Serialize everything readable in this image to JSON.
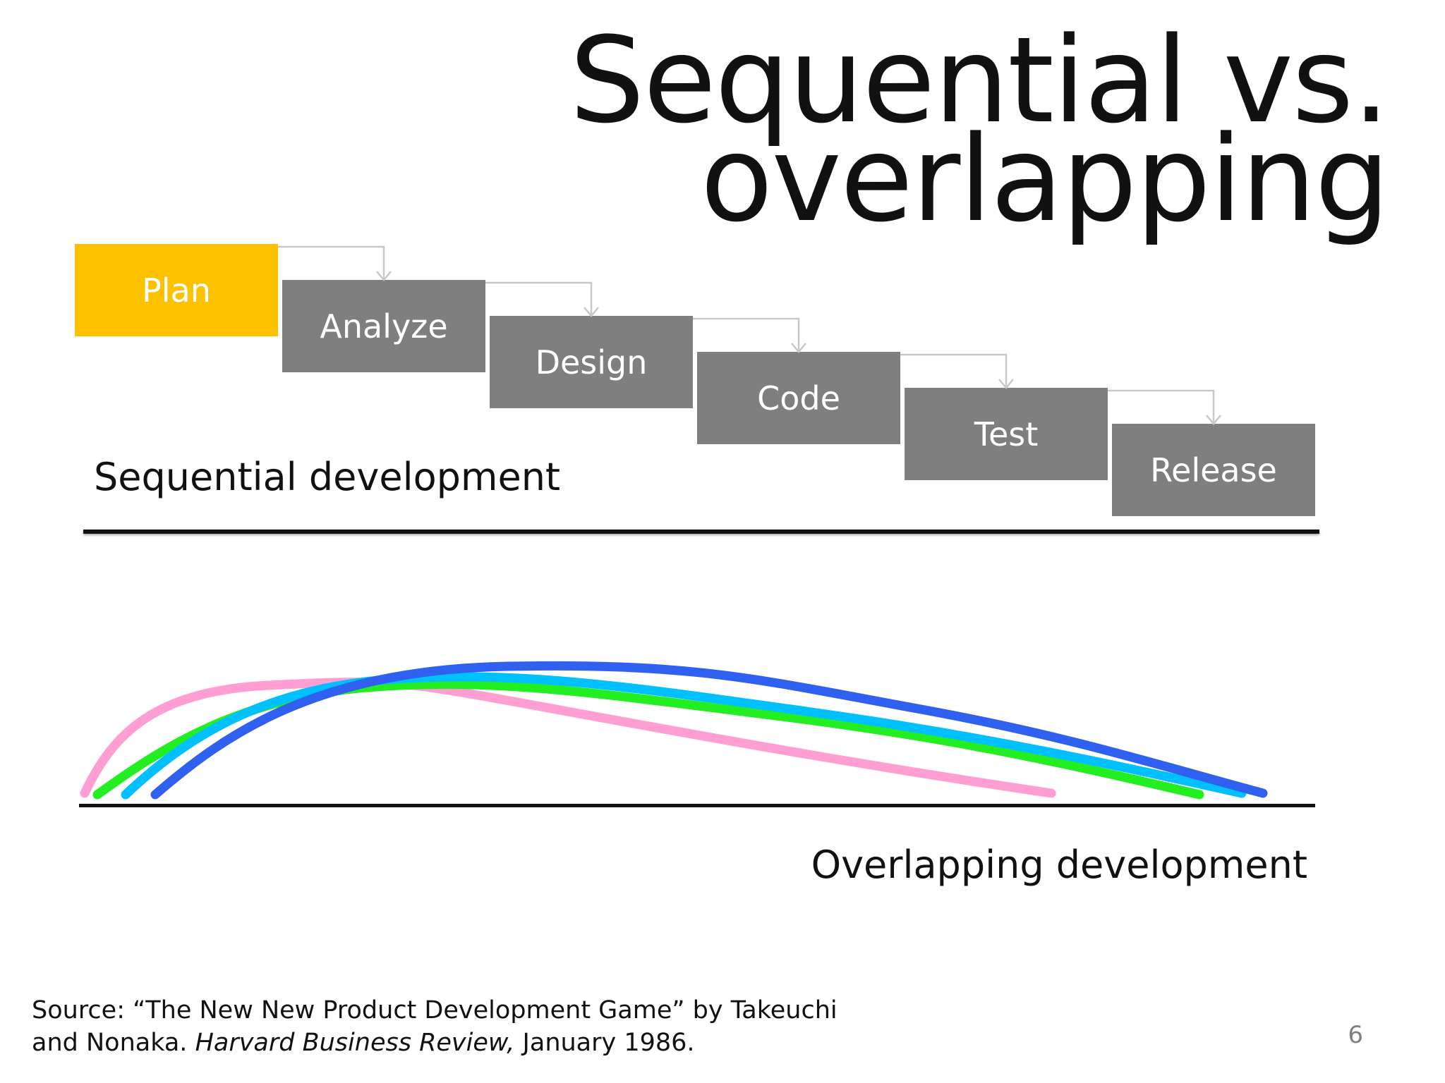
{
  "title": {
    "line1": "Sequential vs.",
    "line2": "overlapping"
  },
  "sequential": {
    "label": "Sequential development",
    "stages": [
      "Plan",
      "Analyze",
      "Design",
      "Code",
      "Test",
      "Release"
    ],
    "highlight_color": "#fcc200",
    "stage_color": "#7f7f7f"
  },
  "overlapping": {
    "label": "Overlapping development",
    "curve_colors": [
      "#ff9ed2",
      "#22ee22",
      "#00c0ff",
      "#3060f0"
    ]
  },
  "source": {
    "line1": "Source: “The New New Product Development Game” by Takeuchi",
    "line2_prefix": "and Nonaka. ",
    "line2_italic": "Harvard Business Review,",
    "line2_suffix": " January 1986."
  },
  "page_number": "6"
}
